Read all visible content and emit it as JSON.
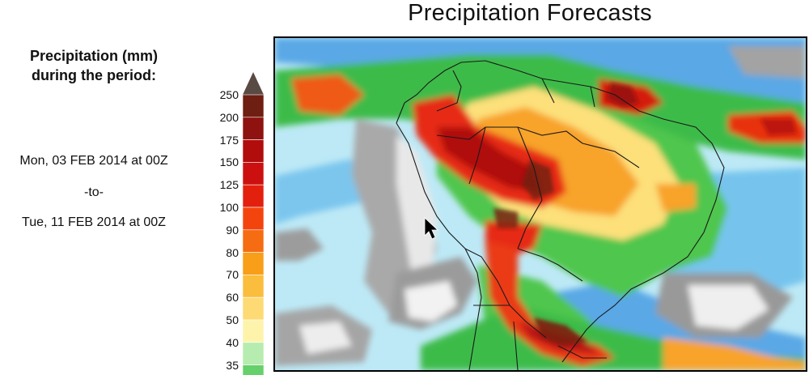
{
  "title": "Precipitation Forecasts",
  "legend": {
    "heading_line1": "Precipitation (mm)",
    "heading_line2": "during the period:",
    "period_start": "Mon, 03 FEB 2014 at 00Z",
    "period_sep": "-to-",
    "period_end": "Tue, 11 FEB 2014 at 00Z",
    "levels": [
      {
        "label": "250",
        "color": "#6e1f12"
      },
      {
        "label": "200",
        "color": "#8e1210"
      },
      {
        "label": "175",
        "color": "#b10d0d"
      },
      {
        "label": "150",
        "color": "#cc1010"
      },
      {
        "label": "125",
        "color": "#e3200e"
      },
      {
        "label": "100",
        "color": "#f4440e"
      },
      {
        "label": "90",
        "color": "#f66c12"
      },
      {
        "label": "80",
        "color": "#f99e19"
      },
      {
        "label": "70",
        "color": "#fbbd3d"
      },
      {
        "label": "60",
        "color": "#fdda74"
      },
      {
        "label": "50",
        "color": "#fdf3ab"
      },
      {
        "label": "40",
        "color": "#b6ecb0"
      },
      {
        "label": "35",
        "color": "#66d06a"
      }
    ],
    "top_arrow_color": "#5a4a44"
  }
}
